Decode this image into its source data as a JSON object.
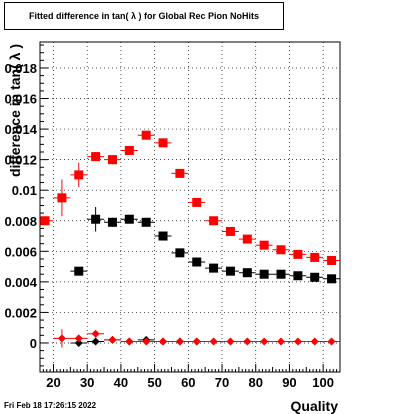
{
  "chart_data": {
    "type": "scatter",
    "title": "Fitted difference in tan( λ ) for Global Rec Pion NoHits",
    "xlabel": "Quality",
    "ylabel": "difference in tan( λ )",
    "xlim": [
      16,
      105
    ],
    "ylim": [
      -0.0019,
      0.0197
    ],
    "x_ticks": [
      20,
      30,
      40,
      50,
      60,
      70,
      80,
      90,
      100
    ],
    "y_ticks": [
      0,
      0.002,
      0.004,
      0.006,
      0.008,
      0.01,
      0.012,
      0.014,
      0.016,
      0.018
    ],
    "y_tick_labels": [
      "0",
      "0.002",
      "0.004",
      "0.006",
      "0.008",
      "0.01",
      "0.012",
      "0.014",
      "0.016",
      "0.018"
    ],
    "grid": true,
    "series": [
      {
        "marker": "square",
        "color": "#000000",
        "points": [
          {
            "x": 27.5,
            "y": 0.0047,
            "xerr": 2.5,
            "yerr": 0.0002
          },
          {
            "x": 32.5,
            "y": 0.0081,
            "xerr": 2.5,
            "yerr": 0.0008
          },
          {
            "x": 37.5,
            "y": 0.0079,
            "xerr": 2.5,
            "yerr": 0.0003
          },
          {
            "x": 42.5,
            "y": 0.0081,
            "xerr": 2.5,
            "yerr": 0.0002
          },
          {
            "x": 47.5,
            "y": 0.0079,
            "xerr": 2.5,
            "yerr": 0.0002
          },
          {
            "x": 52.5,
            "y": 0.007,
            "xerr": 2.5,
            "yerr": 0.0002
          },
          {
            "x": 57.5,
            "y": 0.0059,
            "xerr": 2.5,
            "yerr": 0.0001
          },
          {
            "x": 62.5,
            "y": 0.0053,
            "xerr": 2.5,
            "yerr": 0.0001
          },
          {
            "x": 67.5,
            "y": 0.0049,
            "xerr": 2.5,
            "yerr": 0.0001
          },
          {
            "x": 72.5,
            "y": 0.0047,
            "xerr": 2.5,
            "yerr": 0.0001
          },
          {
            "x": 77.5,
            "y": 0.0046,
            "xerr": 2.5,
            "yerr": 0.0001
          },
          {
            "x": 82.5,
            "y": 0.0045,
            "xerr": 2.5,
            "yerr": 0.0001
          },
          {
            "x": 87.5,
            "y": 0.0045,
            "xerr": 2.5,
            "yerr": 0.0001
          },
          {
            "x": 92.5,
            "y": 0.0044,
            "xerr": 2.5,
            "yerr": 0.0001
          },
          {
            "x": 97.5,
            "y": 0.0043,
            "xerr": 2.5,
            "yerr": 0.0001
          },
          {
            "x": 102.5,
            "y": 0.0042,
            "xerr": 2.5,
            "yerr": 0.0001
          }
        ]
      },
      {
        "marker": "square",
        "color": "#ff0000",
        "points": [
          {
            "x": 17.5,
            "y": 0.008,
            "xerr": 2.5,
            "yerr": 0.0001
          },
          {
            "x": 22.5,
            "y": 0.0095,
            "xerr": 2.5,
            "yerr": 0.0012
          },
          {
            "x": 27.5,
            "y": 0.011,
            "xerr": 2.5,
            "yerr": 0.0008
          },
          {
            "x": 32.5,
            "y": 0.0122,
            "xerr": 2.5,
            "yerr": 0.0003
          },
          {
            "x": 37.5,
            "y": 0.012,
            "xerr": 2.5,
            "yerr": 0.0003
          },
          {
            "x": 42.5,
            "y": 0.0126,
            "xerr": 2.5,
            "yerr": 0.0002
          },
          {
            "x": 47.5,
            "y": 0.0136,
            "xerr": 2.5,
            "yerr": 0.0002
          },
          {
            "x": 52.5,
            "y": 0.0131,
            "xerr": 2.5,
            "yerr": 0.0002
          },
          {
            "x": 57.5,
            "y": 0.0111,
            "xerr": 2.5,
            "yerr": 0.0002
          },
          {
            "x": 62.5,
            "y": 0.0092,
            "xerr": 2.5,
            "yerr": 0.0001
          },
          {
            "x": 67.5,
            "y": 0.008,
            "xerr": 2.5,
            "yerr": 0.0001
          },
          {
            "x": 72.5,
            "y": 0.0073,
            "xerr": 2.5,
            "yerr": 0.0001
          },
          {
            "x": 77.5,
            "y": 0.0068,
            "xerr": 2.5,
            "yerr": 0.0001
          },
          {
            "x": 82.5,
            "y": 0.0064,
            "xerr": 2.5,
            "yerr": 0.0001
          },
          {
            "x": 87.5,
            "y": 0.0061,
            "xerr": 2.5,
            "yerr": 0.0001
          },
          {
            "x": 92.5,
            "y": 0.0058,
            "xerr": 2.5,
            "yerr": 0.0001
          },
          {
            "x": 97.5,
            "y": 0.0056,
            "xerr": 2.5,
            "yerr": 0.0001
          },
          {
            "x": 102.5,
            "y": 0.0054,
            "xerr": 2.5,
            "yerr": 0.0001
          }
        ]
      },
      {
        "marker": "diamond",
        "color": "#000000",
        "points": [
          {
            "x": 27.5,
            "y": 0.0,
            "xerr": 2.5,
            "yerr": 5e-05
          },
          {
            "x": 32.5,
            "y": 0.0001,
            "xerr": 2.5,
            "yerr": 5e-05
          },
          {
            "x": 37.5,
            "y": 0.0002,
            "xerr": 2.5,
            "yerr": 5e-05
          },
          {
            "x": 42.5,
            "y": 0.0001,
            "xerr": 2.5,
            "yerr": 5e-05
          },
          {
            "x": 47.5,
            "y": 0.0002,
            "xerr": 2.5,
            "yerr": 5e-05
          },
          {
            "x": 52.5,
            "y": 0.0001,
            "xerr": 2.5,
            "yerr": 5e-05
          },
          {
            "x": 57.5,
            "y": 0.0001,
            "xerr": 2.5,
            "yerr": 5e-05
          },
          {
            "x": 62.5,
            "y": 0.0001,
            "xerr": 2.5,
            "yerr": 5e-05
          }
        ]
      },
      {
        "marker": "diamond",
        "color": "#ff0000",
        "points": [
          {
            "x": 22.5,
            "y": 0.0003,
            "xerr": 2.5,
            "yerr": 0.0006
          },
          {
            "x": 27.5,
            "y": 0.0003,
            "xerr": 2.5,
            "yerr": 0.0002
          },
          {
            "x": 32.5,
            "y": 0.0006,
            "xerr": 2.5,
            "yerr": 0.0002
          },
          {
            "x": 37.5,
            "y": 0.0002,
            "xerr": 2.5,
            "yerr": 0.0001
          },
          {
            "x": 42.5,
            "y": 0.0001,
            "xerr": 2.5,
            "yerr": 0.0001
          },
          {
            "x": 47.5,
            "y": 0.0001,
            "xerr": 2.5,
            "yerr": 0.0001
          },
          {
            "x": 52.5,
            "y": 0.0001,
            "xerr": 2.5,
            "yerr": 0.0001
          },
          {
            "x": 57.5,
            "y": 0.0001,
            "xerr": 2.5,
            "yerr": 0.0001
          },
          {
            "x": 62.5,
            "y": 0.0001,
            "xerr": 2.5,
            "yerr": 0.0001
          },
          {
            "x": 67.5,
            "y": 0.0001,
            "xerr": 2.5,
            "yerr": 0.0001
          },
          {
            "x": 72.5,
            "y": 0.0001,
            "xerr": 2.5,
            "yerr": 0.0001
          },
          {
            "x": 77.5,
            "y": 0.0001,
            "xerr": 2.5,
            "yerr": 0.0001
          },
          {
            "x": 82.5,
            "y": 0.0001,
            "xerr": 2.5,
            "yerr": 0.0001
          },
          {
            "x": 87.5,
            "y": 0.0001,
            "xerr": 2.5,
            "yerr": 0.0001
          },
          {
            "x": 92.5,
            "y": 0.0001,
            "xerr": 2.5,
            "yerr": 0.0001
          },
          {
            "x": 97.5,
            "y": 0.0001,
            "xerr": 2.5,
            "yerr": 0.0001
          },
          {
            "x": 102.5,
            "y": 0.0001,
            "xerr": 2.5,
            "yerr": 0.0001
          }
        ]
      }
    ]
  },
  "footer": {
    "timestamp": "Fri Feb 18 17:26:15 2022"
  }
}
